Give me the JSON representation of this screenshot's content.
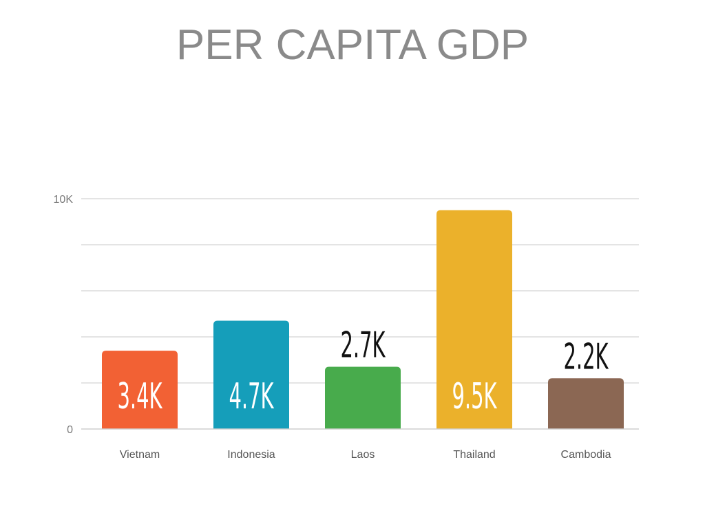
{
  "title": "PER CAPITA GDP",
  "chart_data": {
    "type": "bar",
    "categories": [
      "Vietnam",
      "Indonesia",
      "Laos",
      "Thailand",
      "Cambodia"
    ],
    "values": [
      3400,
      4700,
      2700,
      9500,
      2200
    ],
    "data_labels": [
      "3.4K",
      "4.7K",
      "2.7K",
      "9.5K",
      "2.2K"
    ],
    "colors": [
      "#f26134",
      "#159eba",
      "#48ab4c",
      "#ebb12b",
      "#8b6753"
    ],
    "label_position": [
      "inside",
      "inside",
      "above",
      "inside",
      "above"
    ],
    "label_colors": [
      "#ffffff",
      "#ffffff",
      "#111111",
      "#ffffff",
      "#111111"
    ],
    "y_tick_labels": [
      "0",
      "10K"
    ],
    "ylim": [
      0,
      10000
    ],
    "grid": true,
    "xlabel": "",
    "ylabel": ""
  }
}
